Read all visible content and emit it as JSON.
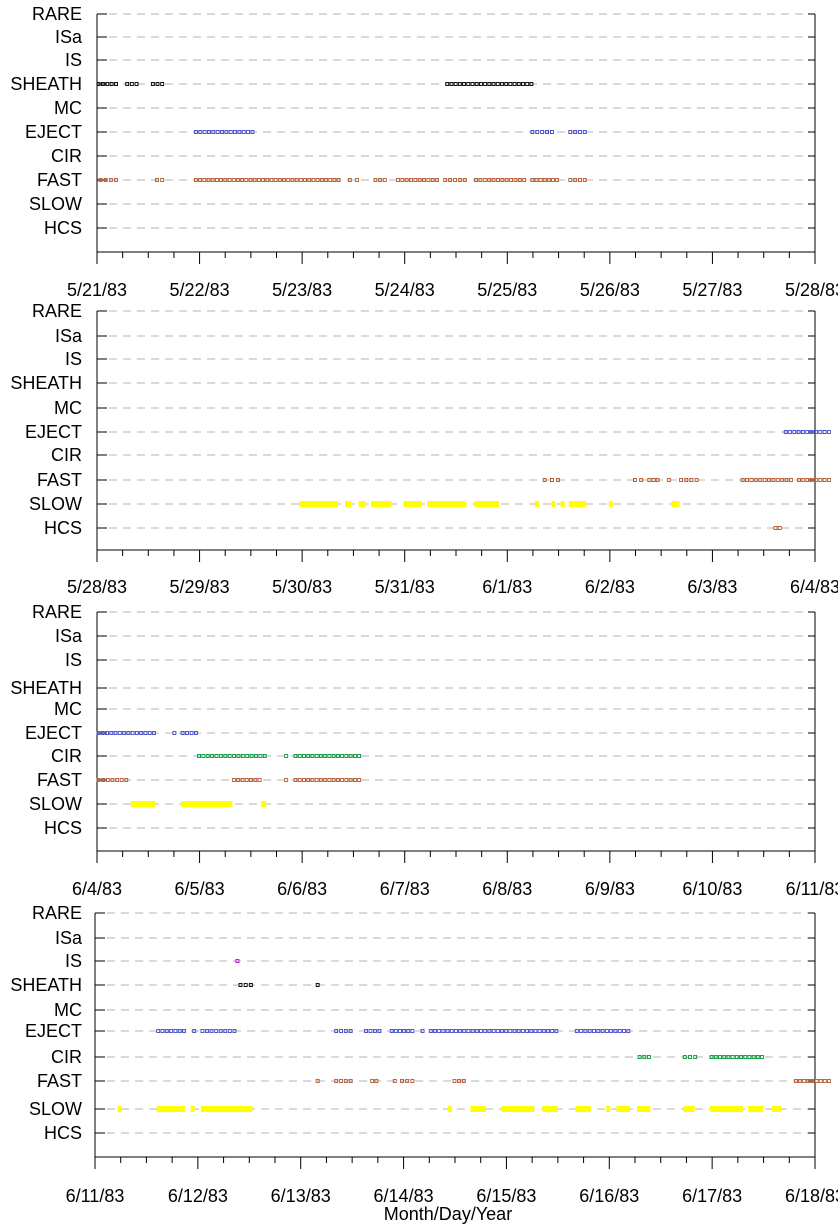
{
  "chart_data": {
    "type": "scatter",
    "categories": [
      "RARE",
      "ISa",
      "IS",
      "SHEATH",
      "MC",
      "EJECT",
      "CIR",
      "FAST",
      "SLOW",
      "HCS"
    ],
    "xlabel": "Month/Day/Year",
    "grid": true,
    "colors": {
      "SHEATH": "#000000",
      "EJECT": "#3f48cc",
      "CIR": "#009933",
      "FAST": "#b5562a",
      "SLOW": "#ffff00",
      "HCS": "#b5562a",
      "IS": "#cc00cc"
    },
    "panels": [
      {
        "ticks": [
          "5/21/83",
          "5/22/83",
          "5/23/83",
          "5/24/83",
          "5/25/83",
          "5/26/83",
          "5/27/83",
          "5/28/83"
        ],
        "series": [
          {
            "category": "SHEATH",
            "intervals": [
              [
                0.0,
                0.2
              ],
              [
                0.28,
                0.4
              ],
              [
                0.53,
                0.65
              ],
              [
                3.4,
                4.25
              ]
            ]
          },
          {
            "category": "EJECT",
            "intervals": [
              [
                0.95,
                1.53
              ],
              [
                4.23,
                4.45
              ],
              [
                4.6,
                4.77
              ]
            ]
          },
          {
            "category": "FAST",
            "intervals": [
              [
                0.02,
                0.2
              ],
              [
                0.57,
                0.65
              ],
              [
                0.95,
                2.37
              ],
              [
                2.45,
                2.55
              ],
              [
                2.7,
                2.82
              ],
              [
                2.92,
                3.33
              ],
              [
                3.38,
                3.6
              ],
              [
                3.68,
                4.18
              ],
              [
                4.23,
                4.5
              ],
              [
                4.6,
                4.77
              ]
            ]
          }
        ]
      },
      {
        "ticks": [
          "5/28/83",
          "5/29/83",
          "5/30/83",
          "5/31/83",
          "6/1/83",
          "6/2/83",
          "6/3/83",
          "6/4/83"
        ],
        "series": [
          {
            "category": "EJECT",
            "intervals": [
              [
                6.7,
                7.15
              ]
            ]
          },
          {
            "category": "FAST",
            "intervals": [
              [
                4.35,
                4.45
              ],
              [
                4.48,
                4.52
              ],
              [
                5.23,
                5.32
              ],
              [
                5.37,
                5.48
              ],
              [
                5.56,
                5.6
              ],
              [
                5.68,
                5.86
              ],
              [
                6.28,
                6.78
              ],
              [
                6.83,
                7.15
              ]
            ]
          },
          {
            "category": "SLOW",
            "intervals": [
              [
                1.97,
                2.35
              ],
              [
                2.42,
                2.48
              ],
              [
                2.55,
                2.62
              ],
              [
                2.67,
                2.87
              ],
              [
                2.99,
                3.17
              ],
              [
                3.22,
                3.6
              ],
              [
                3.68,
                3.92
              ],
              [
                4.27,
                4.3
              ],
              [
                4.43,
                4.47
              ],
              [
                4.52,
                4.56
              ],
              [
                4.6,
                4.77
              ],
              [
                4.99,
                5.02
              ],
              [
                5.6,
                5.68
              ]
            ]
          },
          {
            "category": "HCS",
            "intervals": [
              [
                6.6,
                6.67
              ]
            ]
          }
        ]
      },
      {
        "ticks": [
          "6/4/83",
          "6/5/83",
          "6/6/83",
          "6/7/83",
          "6/8/83",
          "6/9/83",
          "6/10/83",
          "6/11/83"
        ],
        "series": [
          {
            "category": "EJECT",
            "intervals": [
              [
                0.0,
                0.57
              ],
              [
                0.74,
                0.78
              ],
              [
                0.82,
                0.98
              ]
            ]
          },
          {
            "category": "CIR",
            "intervals": [
              [
                0.98,
                1.65
              ],
              [
                1.83,
                1.87
              ],
              [
                1.92,
                2.57
              ]
            ]
          },
          {
            "category": "FAST",
            "intervals": [
              [
                0.0,
                0.3
              ],
              [
                1.32,
                1.6
              ],
              [
                1.83,
                1.87
              ],
              [
                1.92,
                2.57
              ]
            ]
          },
          {
            "category": "SLOW",
            "intervals": [
              [
                0.33,
                0.57
              ],
              [
                0.82,
                1.32
              ],
              [
                1.6,
                1.65
              ]
            ]
          }
        ]
      },
      {
        "ticks": [
          "6/11/83",
          "6/12/83",
          "6/13/83",
          "6/14/83",
          "6/15/83",
          "6/16/83",
          "6/17/83",
          "6/18/83"
        ],
        "series": [
          {
            "category": "IS",
            "intervals": [
              [
                1.37,
                1.39
              ]
            ]
          },
          {
            "category": "SHEATH",
            "intervals": [
              [
                1.4,
                1.53
              ],
              [
                2.15,
                2.17
              ]
            ]
          },
          {
            "category": "EJECT",
            "intervals": [
              [
                0.6,
                0.88
              ],
              [
                0.95,
                0.97
              ],
              [
                1.03,
                1.37
              ],
              [
                2.33,
                2.5
              ],
              [
                2.62,
                2.78
              ],
              [
                2.87,
                3.1
              ],
              [
                3.17,
                3.2
              ],
              [
                3.25,
                4.5
              ],
              [
                4.67,
                5.2
              ]
            ]
          },
          {
            "category": "CIR",
            "intervals": [
              [
                5.28,
                5.4
              ],
              [
                5.72,
                5.85
              ],
              [
                5.98,
                6.5
              ]
            ]
          },
          {
            "category": "FAST",
            "intervals": [
              [
                2.15,
                2.17
              ],
              [
                2.33,
                2.5
              ],
              [
                2.68,
                2.75
              ],
              [
                2.9,
                2.93
              ],
              [
                2.97,
                3.1
              ],
              [
                3.48,
                3.6
              ],
              [
                6.8,
                7.15
              ]
            ]
          },
          {
            "category": "SLOW",
            "intervals": [
              [
                0.22,
                0.25
              ],
              [
                0.6,
                0.88
              ],
              [
                0.93,
                0.97
              ],
              [
                1.03,
                1.53
              ],
              [
                3.43,
                3.47
              ],
              [
                3.65,
                3.8
              ],
              [
                3.95,
                4.27
              ],
              [
                4.35,
                4.5
              ],
              [
                4.67,
                4.82
              ],
              [
                4.97,
                5.0
              ],
              [
                5.07,
                5.2
              ],
              [
                5.27,
                5.4
              ],
              [
                5.72,
                5.83
              ],
              [
                5.98,
                6.3
              ],
              [
                6.35,
                6.5
              ],
              [
                6.58,
                6.67
              ]
            ]
          }
        ]
      }
    ]
  }
}
